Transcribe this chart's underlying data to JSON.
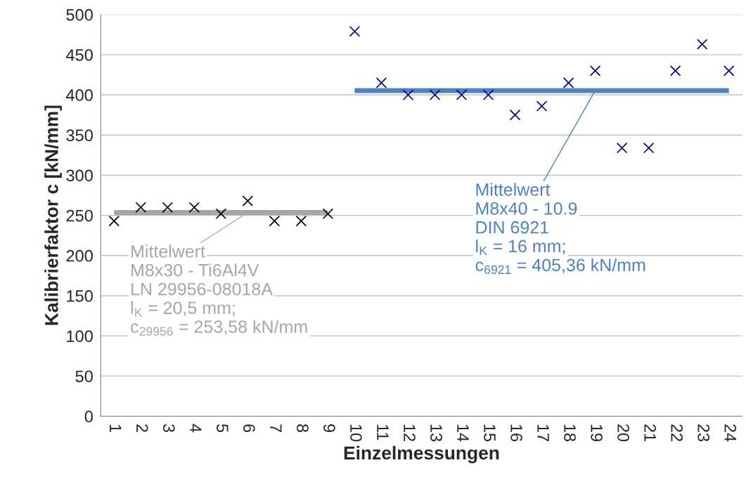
{
  "chart_data": {
    "type": "scatter",
    "xlabel": "Einzelmessungen",
    "ylabel": "Kalibrierfaktor c [kN/mm]",
    "categories": [
      "1",
      "2",
      "3",
      "4",
      "5",
      "6",
      "7",
      "8",
      "9",
      "10",
      "11",
      "12",
      "13",
      "14",
      "15",
      "16",
      "17",
      "18",
      "19",
      "20",
      "21",
      "22",
      "23",
      "24"
    ],
    "series": [
      {
        "color": "#000000",
        "marker": "cross",
        "values": [
          243,
          260,
          260,
          260,
          252,
          268,
          243,
          243,
          252,
          null,
          null,
          null,
          null,
          null,
          null,
          null,
          null,
          null,
          null,
          null,
          null,
          null,
          null,
          null
        ]
      },
      {
        "color": "#000080",
        "marker": "cross",
        "values": [
          null,
          null,
          null,
          null,
          null,
          null,
          null,
          null,
          null,
          479,
          415,
          400,
          400,
          400,
          400,
          375,
          386,
          415,
          430,
          334,
          334,
          430,
          463,
          430
        ]
      },
      {
        "type": "line",
        "color": "#a6a6a6",
        "values": [
          253.58,
          253.58,
          253.58,
          253.58,
          253.58,
          253.58,
          253.58,
          253.58,
          253.58,
          null,
          null,
          null,
          null,
          null,
          null,
          null,
          null,
          null,
          null,
          null,
          null,
          null,
          null,
          null
        ]
      },
      {
        "type": "line",
        "color": "#4f81bd",
        "values": [
          null,
          null,
          null,
          null,
          null,
          null,
          null,
          null,
          null,
          405.36,
          405.36,
          405.36,
          405.36,
          405.36,
          405.36,
          405.36,
          405.36,
          405.36,
          405.36,
          405.36,
          405.36,
          405.36,
          405.36,
          405.36
        ]
      }
    ],
    "annotations": [
      {
        "text": "Mittelwert",
        "x": "6",
        "y": 253.58
      },
      "M8x30 - Ti6Al4V",
      "LN 29956-08018A",
      "l$_{K}$ = 20,5 mm;",
      "c$_{29956}$ = 253,58 kN/mm",
      {
        "text": "Mittelwert",
        "x": "19",
        "y": 405.36
      },
      "M8x40 - 10.9",
      "DIN 6921",
      "l$_{K}$ = 16 mm;",
      "c$_{6921}$ = 405,36 kN/mm"
    ],
    "ylim": [
      0,
      500
    ],
    "yticks": [
      0,
      50,
      100,
      150,
      200,
      250,
      300,
      350,
      400,
      450,
      500
    ],
    "grid": "y",
    "legend": false
  }
}
